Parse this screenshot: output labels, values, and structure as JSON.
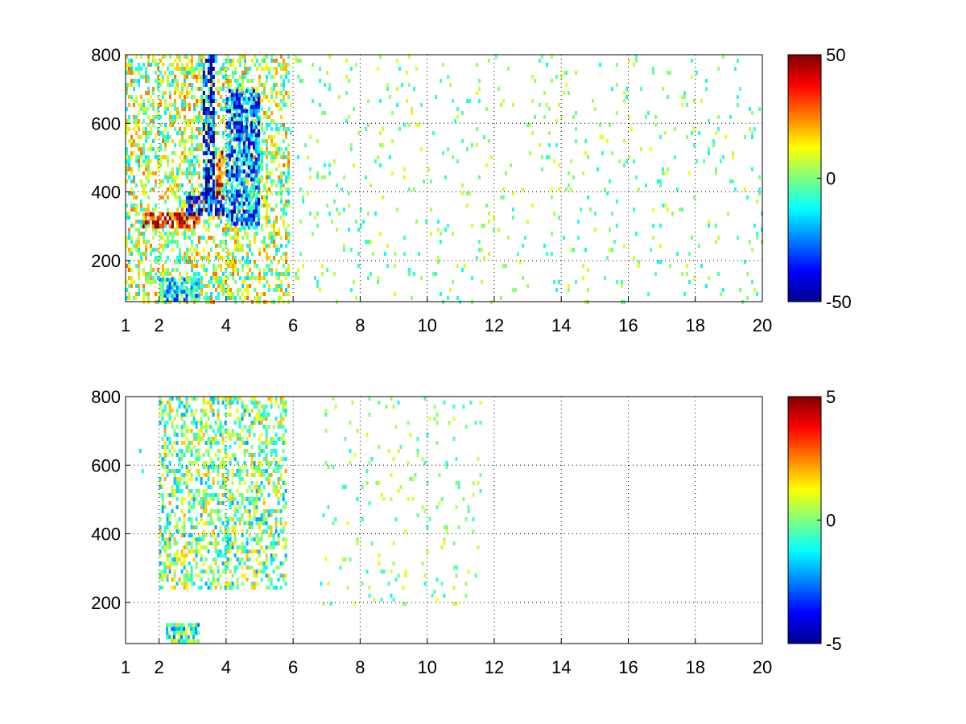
{
  "figure": {
    "background": "#ffffff"
  },
  "chart_data": [
    {
      "type": "heatmap",
      "title": "",
      "xlabel": "",
      "ylabel": "",
      "xlim": [
        1,
        20
      ],
      "ylim": [
        80,
        800
      ],
      "x_ticks": [
        1,
        2,
        4,
        6,
        8,
        10,
        12,
        14,
        16,
        18,
        20
      ],
      "x_tick_labels": [
        "1",
        "2",
        "4",
        "6",
        "8",
        "10",
        "12",
        "14",
        "16",
        "18",
        "20"
      ],
      "y_ticks": [
        200,
        400,
        600,
        800
      ],
      "y_tick_labels": [
        "200",
        "400",
        "600",
        "800"
      ],
      "grid": true,
      "colormap": "jet",
      "colorbar": {
        "min": -50,
        "max": 50,
        "ticks": [
          -50,
          0,
          50
        ],
        "tick_labels": [
          "-50",
          "0",
          "50"
        ],
        "position": "right"
      },
      "features": [
        {
          "description": "dense region",
          "x_range": [
            1,
            5.9
          ],
          "y_range": [
            80,
            800
          ],
          "typical_value": 5
        },
        {
          "description": "positive band",
          "x_range": [
            1.5,
            3.2
          ],
          "y_range": [
            300,
            340
          ],
          "typical_value": 40
        },
        {
          "description": "negative band",
          "x_range": [
            2.8,
            3.9
          ],
          "y_range": [
            340,
            400
          ],
          "typical_value": -35
        },
        {
          "description": "negative column",
          "x_range": [
            3.3,
            3.6
          ],
          "y_range": [
            380,
            800
          ],
          "typical_value": -40
        },
        {
          "description": "positive column",
          "x_range": [
            3.7,
            3.9
          ],
          "y_range": [
            380,
            520
          ],
          "typical_value": 35
        },
        {
          "description": "negative region",
          "x_range": [
            4.0,
            5.0
          ],
          "y_range": [
            300,
            700
          ],
          "typical_value": -25
        },
        {
          "description": "low-altitude patch",
          "x_range": [
            2.0,
            3.2
          ],
          "y_range": [
            90,
            150
          ],
          "typical_value": -15
        },
        {
          "description": "sparse scatter",
          "x_range": [
            5.9,
            20
          ],
          "y_range": [
            80,
            800
          ],
          "typical_value": 0
        }
      ]
    },
    {
      "type": "heatmap",
      "title": "",
      "xlabel": "",
      "ylabel": "",
      "xlim": [
        1,
        20
      ],
      "ylim": [
        80,
        800
      ],
      "x_ticks": [
        1,
        2,
        4,
        6,
        8,
        10,
        12,
        14,
        16,
        18,
        20
      ],
      "x_tick_labels": [
        "1",
        "2",
        "4",
        "6",
        "8",
        "10",
        "12",
        "14",
        "16",
        "18",
        "20"
      ],
      "y_ticks": [
        200,
        400,
        600,
        800
      ],
      "y_tick_labels": [
        "200",
        "400",
        "600",
        "800"
      ],
      "grid": true,
      "colormap": "jet",
      "colorbar": {
        "min": -5,
        "max": 5,
        "ticks": [
          -5,
          0,
          5
        ],
        "tick_labels": [
          "-5",
          "0",
          "5"
        ],
        "position": "right"
      },
      "features": [
        {
          "description": "dense region",
          "x_range": [
            2.0,
            5.8
          ],
          "y_range": [
            240,
            800
          ],
          "typical_value": 0
        },
        {
          "description": "low-altitude patch",
          "x_range": [
            2.2,
            3.2
          ],
          "y_range": [
            90,
            140
          ],
          "typical_value": -0.5
        },
        {
          "description": "isolated column",
          "x_range": [
            1.4,
            1.5
          ],
          "y_range": [
            380,
            800
          ],
          "typical_value": -2
        },
        {
          "description": "sparse points",
          "x_range": [
            6.8,
            11.6
          ],
          "y_range": [
            190,
            800
          ],
          "typical_value": 0
        }
      ]
    }
  ]
}
